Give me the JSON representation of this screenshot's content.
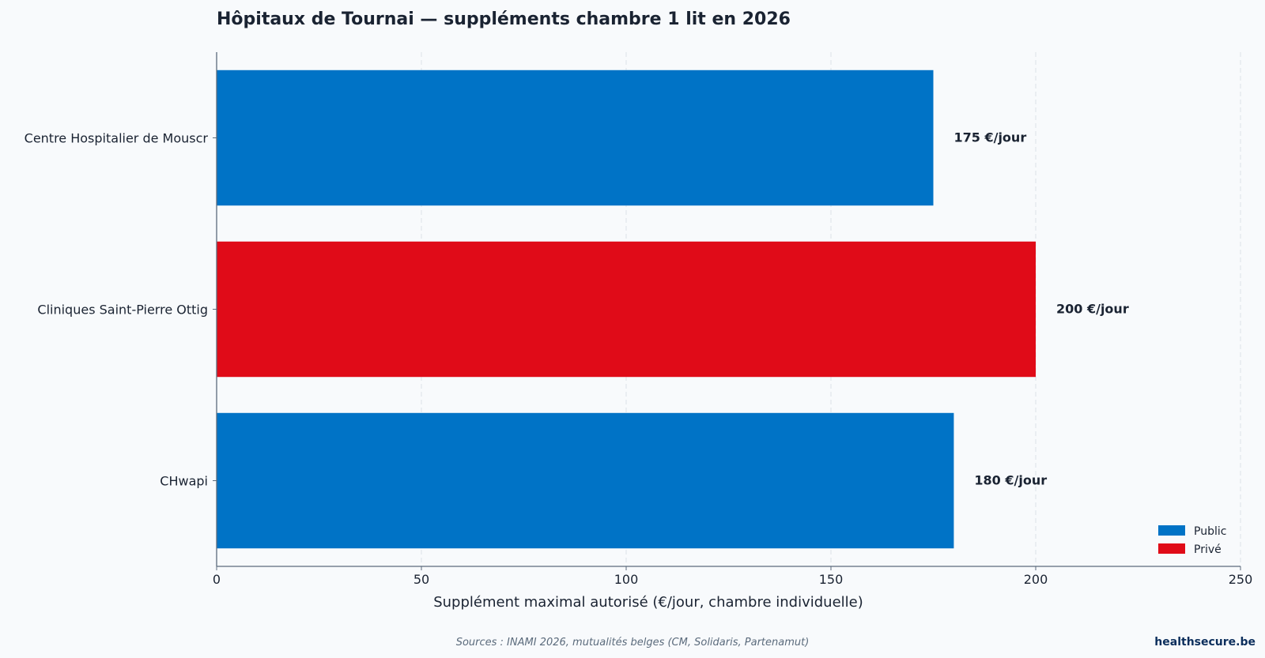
{
  "chart_data": {
    "type": "bar",
    "orientation": "horizontal",
    "title": "Hôpitaux de Tournai — suppléments chambre 1 lit en 2026",
    "xlabel": "Supplément maximal autorisé (€/jour, chambre individuelle)",
    "ylabel": "",
    "xlim": [
      0,
      250
    ],
    "xticks": [
      0,
      50,
      100,
      150,
      200,
      250
    ],
    "grid": "vertical dashed",
    "legend_position": "bottom-right",
    "categories": [
      "Centre Hospitalier de Mouscr",
      "Cliniques Saint-Pierre Ottig",
      "CHwapi"
    ],
    "values": [
      175,
      200,
      180
    ],
    "value_labels": [
      "175 €/jour",
      "200 €/jour",
      "180 €/jour"
    ],
    "groups": [
      "Public",
      "Privé",
      "Public"
    ],
    "legend": [
      {
        "name": "Public",
        "color": "#0073c6"
      },
      {
        "name": "Privé",
        "color": "#e00b18"
      }
    ]
  },
  "footer": {
    "source": "Sources : INAMI 2026, mutualités belges (CM, Solidaris, Partenamut)",
    "brand": "healthsecure.be"
  }
}
